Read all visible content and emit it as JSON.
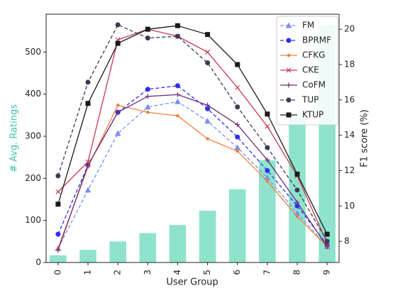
{
  "chart_data": {
    "type": "bar_line_combo",
    "xlabel": "User Group",
    "ylabel": "# Avg. Ratings",
    "y2label": "F1 score (%)",
    "categories": [
      "0",
      "1",
      "2",
      "3",
      "4",
      "5",
      "6",
      "7",
      "8",
      "9"
    ],
    "bars": {
      "color": "#8fe3cc",
      "values": [
        17,
        30,
        50,
        70,
        89,
        123,
        174,
        243,
        348,
        564
      ]
    },
    "ylim": [
      0,
      590
    ],
    "yticks": [
      0,
      100,
      200,
      300,
      400,
      500
    ],
    "y2lim": [
      6.8,
      20.85
    ],
    "y2ticks": [
      8,
      10,
      12,
      14,
      16,
      18,
      20
    ],
    "legend": "upper right",
    "series": [
      {
        "name": "FM",
        "color": "#7b8ef0",
        "dash": true,
        "marker": "triangle",
        "axis": "y2",
        "values": [
          7.6,
          10.9,
          14.1,
          15.6,
          15.9,
          14.8,
          13.3,
          11.6,
          9.6,
          7.7
        ]
      },
      {
        "name": "BPRMF",
        "color": "#2f2ff0",
        "dash": true,
        "marker": "circle",
        "axis": "y2",
        "values": [
          8.4,
          12.3,
          15.3,
          16.6,
          16.8,
          15.5,
          13.9,
          12.0,
          10.0,
          7.8
        ]
      },
      {
        "name": "CFKG",
        "color": "#f08040",
        "dash": false,
        "marker": "star",
        "axis": "y2",
        "values": [
          7.6,
          12.2,
          15.7,
          15.3,
          15.1,
          13.8,
          13.1,
          11.4,
          9.4,
          7.7
        ]
      },
      {
        "name": "CKE",
        "color": "#c8384e",
        "dash": false,
        "marker": "x",
        "axis": "y2",
        "values": [
          10.8,
          12.5,
          19.4,
          20.0,
          19.6,
          18.7,
          16.7,
          14.5,
          11.7,
          7.9
        ]
      },
      {
        "name": "CoFM",
        "color": "#6a2a7a",
        "dash": false,
        "marker": "plus",
        "axis": "y2",
        "values": [
          7.5,
          12.3,
          15.3,
          16.2,
          16.3,
          15.7,
          14.6,
          12.6,
          10.2,
          7.7
        ]
      },
      {
        "name": "TUP",
        "color": "#3a3a55",
        "dash": true,
        "marker": "circle",
        "axis": "y2",
        "values": [
          11.7,
          17.0,
          20.25,
          19.5,
          19.6,
          18.1,
          15.6,
          13.3,
          10.9,
          8.0
        ]
      },
      {
        "name": "KTUP",
        "color": "#1a1a1a",
        "dash": false,
        "marker": "square",
        "axis": "y2",
        "values": [
          10.1,
          15.8,
          19.2,
          20.0,
          20.2,
          19.7,
          18.0,
          15.2,
          11.8,
          8.4
        ]
      }
    ]
  }
}
